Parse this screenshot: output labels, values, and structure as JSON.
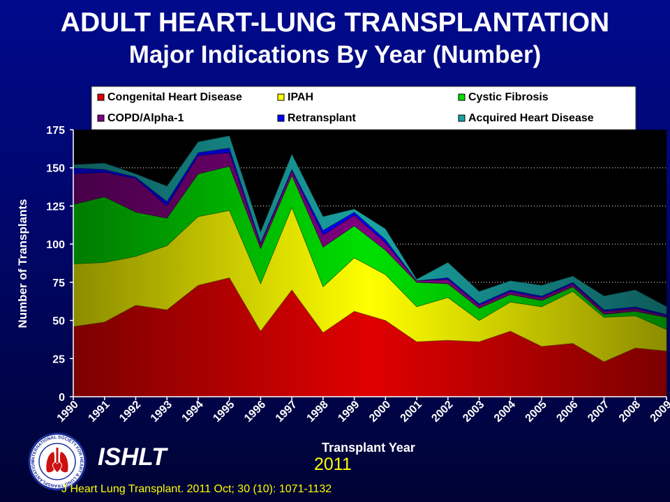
{
  "header": {
    "title": "ADULT HEART-LUNG TRANSPLANTATION",
    "subtitle": "Major Indications By Year (Number)"
  },
  "chart_data": {
    "type": "area",
    "stacked": true,
    "xlabel": "Transplant Year",
    "ylabel": "Number of Transplants",
    "ylim": [
      0,
      175
    ],
    "yticks": [
      0,
      25,
      50,
      75,
      100,
      125,
      150,
      175
    ],
    "grid": "horizontal-dotted",
    "legend_position": "top",
    "background": "#000000",
    "categories": [
      "1990",
      "1991",
      "1992",
      "1993",
      "1994",
      "1995",
      "1996",
      "1997",
      "1998",
      "1999",
      "2000",
      "2001",
      "2002",
      "2003",
      "2004",
      "2005",
      "2006",
      "2007",
      "2008",
      "2009"
    ],
    "series": [
      {
        "name": "Congenital Heart Disease",
        "color": "#e00000",
        "values": [
          46,
          49,
          60,
          57,
          73,
          78,
          43,
          70,
          42,
          56,
          50,
          36,
          37,
          36,
          43,
          33,
          35,
          23,
          32,
          30
        ]
      },
      {
        "name": "IPAH",
        "color": "#ffff00",
        "values": [
          41,
          39,
          32,
          42,
          45,
          44,
          31,
          54,
          30,
          35,
          30,
          23,
          28,
          14,
          19,
          26,
          34,
          29,
          21,
          14
        ]
      },
      {
        "name": "Cystic Fibrosis",
        "color": "#00e000",
        "values": [
          39,
          43,
          29,
          18,
          28,
          29,
          23,
          21,
          26,
          21,
          16,
          16,
          9,
          8,
          5,
          4,
          3,
          2,
          3,
          8
        ]
      },
      {
        "name": "COPD/Alpha-1",
        "color": "#800080",
        "values": [
          20,
          16,
          22,
          8,
          12,
          9,
          3,
          3,
          8,
          7,
          5,
          1,
          3,
          2,
          2,
          2,
          2,
          2,
          2,
          1
        ]
      },
      {
        "name": "Retransplant",
        "color": "#0000ff",
        "values": [
          4,
          2,
          1,
          3,
          2,
          3,
          1,
          1,
          3,
          2,
          2,
          0,
          1,
          1,
          1,
          1,
          1,
          1,
          1,
          1
        ]
      },
      {
        "name": "Acquired Heart Disease",
        "color": "#1aa3a3",
        "values": [
          2,
          4,
          2,
          10,
          7,
          8,
          7,
          10,
          9,
          2,
          7,
          1,
          10,
          8,
          6,
          7,
          4,
          9,
          11,
          5
        ]
      }
    ]
  },
  "footer": {
    "org": "ISHLT",
    "year": "2011",
    "citation": "J Heart Lung Transplant. 2011 Oct; 30 (10): 1071-1132",
    "logo_text": "INTERNATIONAL SOCIETY FOR HEART & LUNG TRANSPLANTATION"
  }
}
